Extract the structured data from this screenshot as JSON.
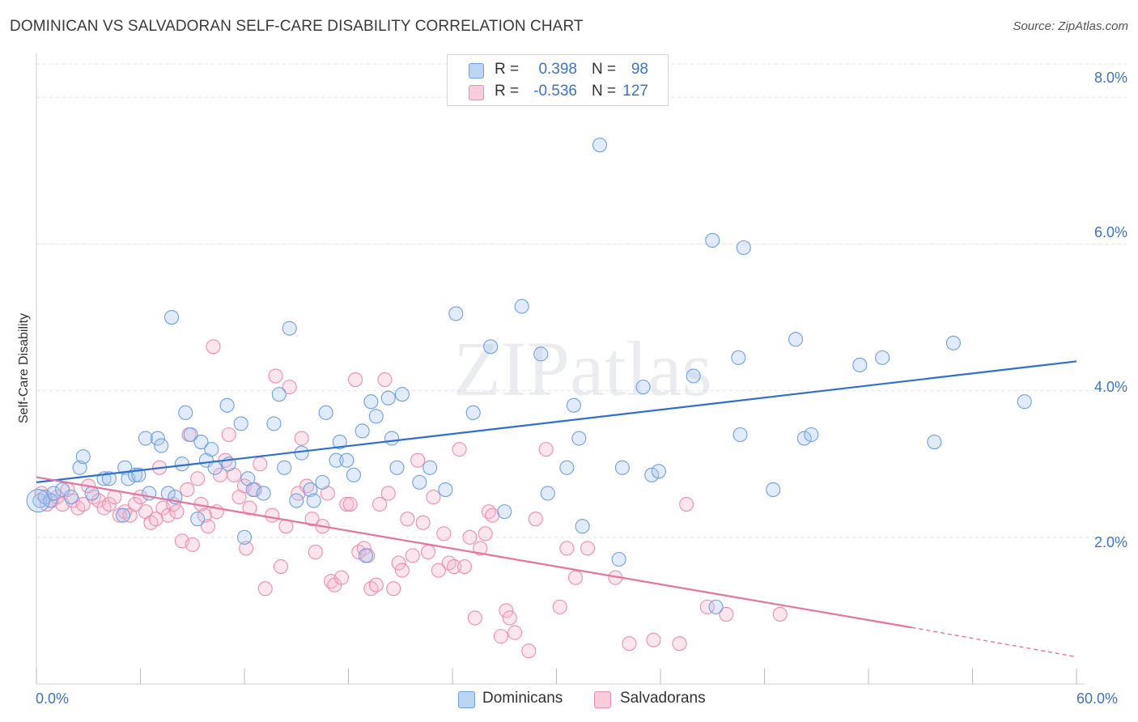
{
  "header": {
    "title": "DOMINICAN VS SALVADORAN SELF-CARE DISABILITY CORRELATION CHART",
    "source": "Source: ZipAtlas.com"
  },
  "watermark": "ZIPatlas",
  "legend": {
    "rows": [
      {
        "label": "R =",
        "r": "0.398",
        "n_label": "N =",
        "n": "98",
        "color": "#a9c7f0"
      },
      {
        "label": "R =",
        "r": "-0.536",
        "n_label": "N =",
        "n": "127",
        "color": "#f5b6cb"
      }
    ]
  },
  "bottom_legend": {
    "items": [
      {
        "label": "Dominicans",
        "color": "#a9c7f0"
      },
      {
        "label": "Salvadorans",
        "color": "#f5b6cb"
      }
    ]
  },
  "chart_data": {
    "type": "scatter",
    "title": "DOMINICAN VS SALVADORAN SELF-CARE DISABILITY CORRELATION CHART",
    "xlabel": "",
    "ylabel": "Self-Care Disability",
    "xlim": [
      0,
      60
    ],
    "ylim": [
      0,
      8.5
    ],
    "x_tick_labels": [
      "0.0%",
      "60.0%"
    ],
    "y_tick_labels": [
      "2.0%",
      "4.0%",
      "6.0%",
      "8.0%"
    ],
    "y_ticks": [
      2,
      4,
      6,
      8
    ],
    "grid": "horizontal dashed",
    "legend_position": "top-center",
    "series": [
      {
        "name": "Dominicans",
        "color": "#6fa0e0",
        "trend": {
          "x": [
            0,
            60
          ],
          "y": [
            2.75,
            4.4
          ]
        },
        "points": [
          [
            0.2,
            2.5
          ],
          [
            0.5,
            2.55
          ],
          [
            0.8,
            2.5
          ],
          [
            1.0,
            2.6
          ],
          [
            1.5,
            2.65
          ],
          [
            2.0,
            2.55
          ],
          [
            2.5,
            2.95
          ],
          [
            2.7,
            3.1
          ],
          [
            3.2,
            2.6
          ],
          [
            3.9,
            2.8
          ],
          [
            4.2,
            2.8
          ],
          [
            5.0,
            2.3
          ],
          [
            5.1,
            2.95
          ],
          [
            5.3,
            2.8
          ],
          [
            5.7,
            2.85
          ],
          [
            5.9,
            2.85
          ],
          [
            6.3,
            3.35
          ],
          [
            6.5,
            2.6
          ],
          [
            7.0,
            3.35
          ],
          [
            7.2,
            3.25
          ],
          [
            7.6,
            2.6
          ],
          [
            7.8,
            5.0
          ],
          [
            8.0,
            2.55
          ],
          [
            8.4,
            3.0
          ],
          [
            8.6,
            3.7
          ],
          [
            8.9,
            3.4
          ],
          [
            9.3,
            2.25
          ],
          [
            9.5,
            3.3
          ],
          [
            9.8,
            3.05
          ],
          [
            10.1,
            3.2
          ],
          [
            10.3,
            2.95
          ],
          [
            11.0,
            3.8
          ],
          [
            11.1,
            3.0
          ],
          [
            11.8,
            3.55
          ],
          [
            12.0,
            2.0
          ],
          [
            12.2,
            2.8
          ],
          [
            12.5,
            2.65
          ],
          [
            13.1,
            2.6
          ],
          [
            13.7,
            3.55
          ],
          [
            14.0,
            3.95
          ],
          [
            14.3,
            2.95
          ],
          [
            14.6,
            4.85
          ],
          [
            15.0,
            2.5
          ],
          [
            15.3,
            3.15
          ],
          [
            15.8,
            2.65
          ],
          [
            16.0,
            2.5
          ],
          [
            16.5,
            2.75
          ],
          [
            16.7,
            3.7
          ],
          [
            17.3,
            3.05
          ],
          [
            17.5,
            3.3
          ],
          [
            17.9,
            3.05
          ],
          [
            18.3,
            2.85
          ],
          [
            18.8,
            3.45
          ],
          [
            19.0,
            1.75
          ],
          [
            19.3,
            3.85
          ],
          [
            19.6,
            3.65
          ],
          [
            20.3,
            3.9
          ],
          [
            20.5,
            3.35
          ],
          [
            20.8,
            2.95
          ],
          [
            21.1,
            3.95
          ],
          [
            22.1,
            2.75
          ],
          [
            22.7,
            2.95
          ],
          [
            23.6,
            2.65
          ],
          [
            24.2,
            5.05
          ],
          [
            25.2,
            3.7
          ],
          [
            26.2,
            4.6
          ],
          [
            27.0,
            2.35
          ],
          [
            28.0,
            5.15
          ],
          [
            29.1,
            4.5
          ],
          [
            29.5,
            2.6
          ],
          [
            30.6,
            2.95
          ],
          [
            31.0,
            3.8
          ],
          [
            31.3,
            3.35
          ],
          [
            31.5,
            2.15
          ],
          [
            32.5,
            7.35
          ],
          [
            33.6,
            1.7
          ],
          [
            33.8,
            2.95
          ],
          [
            35.0,
            4.05
          ],
          [
            35.5,
            2.85
          ],
          [
            35.9,
            2.9
          ],
          [
            37.9,
            4.2
          ],
          [
            39.0,
            6.05
          ],
          [
            39.2,
            1.05
          ],
          [
            40.5,
            4.45
          ],
          [
            40.6,
            3.4
          ],
          [
            40.8,
            5.95
          ],
          [
            42.5,
            2.65
          ],
          [
            43.8,
            4.7
          ],
          [
            44.3,
            3.35
          ],
          [
            44.7,
            3.4
          ],
          [
            47.5,
            4.35
          ],
          [
            48.8,
            4.45
          ],
          [
            51.8,
            3.3
          ],
          [
            52.9,
            4.65
          ],
          [
            57.0,
            3.85
          ]
        ]
      },
      {
        "name": "Salvadorans",
        "color": "#f08cae",
        "trend": {
          "x": [
            0,
            50.5
          ],
          "y": [
            2.82,
            0.77
          ],
          "dashed_to": [
            60,
            0.37
          ]
        },
        "points": [
          [
            0.3,
            2.6
          ],
          [
            0.6,
            2.45
          ],
          [
            0.9,
            2.5
          ],
          [
            1.2,
            2.55
          ],
          [
            1.5,
            2.45
          ],
          [
            1.8,
            2.65
          ],
          [
            2.1,
            2.5
          ],
          [
            2.4,
            2.4
          ],
          [
            2.7,
            2.45
          ],
          [
            3.0,
            2.7
          ],
          [
            3.3,
            2.55
          ],
          [
            3.6,
            2.5
          ],
          [
            3.9,
            2.4
          ],
          [
            4.2,
            2.45
          ],
          [
            4.5,
            2.55
          ],
          [
            4.8,
            2.3
          ],
          [
            5.1,
            2.35
          ],
          [
            5.4,
            2.3
          ],
          [
            5.7,
            2.45
          ],
          [
            6.0,
            2.55
          ],
          [
            6.3,
            2.35
          ],
          [
            6.6,
            2.2
          ],
          [
            6.9,
            2.25
          ],
          [
            7.1,
            2.95
          ],
          [
            7.3,
            2.4
          ],
          [
            7.6,
            2.3
          ],
          [
            7.9,
            2.45
          ],
          [
            8.1,
            2.35
          ],
          [
            8.4,
            1.95
          ],
          [
            8.7,
            2.65
          ],
          [
            8.8,
            3.4
          ],
          [
            9.0,
            1.9
          ],
          [
            9.3,
            2.8
          ],
          [
            9.5,
            2.45
          ],
          [
            9.7,
            2.3
          ],
          [
            9.9,
            2.15
          ],
          [
            10.2,
            4.6
          ],
          [
            10.4,
            2.35
          ],
          [
            10.6,
            2.85
          ],
          [
            10.9,
            3.05
          ],
          [
            11.1,
            3.4
          ],
          [
            11.4,
            2.85
          ],
          [
            11.7,
            2.55
          ],
          [
            12.0,
            2.7
          ],
          [
            12.1,
            1.85
          ],
          [
            12.3,
            2.4
          ],
          [
            12.6,
            2.65
          ],
          [
            12.9,
            3.0
          ],
          [
            13.2,
            1.3
          ],
          [
            13.6,
            2.3
          ],
          [
            13.8,
            4.2
          ],
          [
            14.1,
            1.6
          ],
          [
            14.4,
            2.15
          ],
          [
            14.6,
            4.05
          ],
          [
            15.1,
            2.6
          ],
          [
            15.3,
            3.35
          ],
          [
            15.6,
            2.7
          ],
          [
            15.9,
            2.25
          ],
          [
            16.1,
            1.8
          ],
          [
            16.5,
            2.15
          ],
          [
            16.8,
            2.6
          ],
          [
            17.0,
            1.4
          ],
          [
            17.2,
            1.35
          ],
          [
            17.6,
            1.45
          ],
          [
            17.9,
            2.45
          ],
          [
            18.1,
            2.45
          ],
          [
            18.4,
            4.15
          ],
          [
            18.6,
            1.8
          ],
          [
            18.9,
            1.85
          ],
          [
            19.1,
            1.75
          ],
          [
            19.3,
            1.3
          ],
          [
            19.6,
            1.35
          ],
          [
            19.8,
            2.45
          ],
          [
            20.1,
            4.15
          ],
          [
            20.3,
            2.6
          ],
          [
            20.6,
            1.3
          ],
          [
            20.9,
            1.65
          ],
          [
            21.1,
            1.55
          ],
          [
            21.4,
            2.25
          ],
          [
            21.7,
            1.75
          ],
          [
            22.0,
            3.05
          ],
          [
            22.3,
            2.2
          ],
          [
            22.6,
            1.8
          ],
          [
            22.9,
            2.55
          ],
          [
            23.2,
            1.55
          ],
          [
            23.5,
            2.05
          ],
          [
            23.8,
            1.65
          ],
          [
            24.1,
            1.6
          ],
          [
            24.4,
            3.2
          ],
          [
            24.7,
            1.6
          ],
          [
            25.0,
            2.0
          ],
          [
            25.3,
            0.9
          ],
          [
            25.6,
            1.85
          ],
          [
            25.9,
            2.05
          ],
          [
            26.1,
            2.35
          ],
          [
            26.3,
            2.3
          ],
          [
            26.8,
            0.65
          ],
          [
            27.1,
            1.0
          ],
          [
            27.3,
            0.9
          ],
          [
            27.6,
            0.7
          ],
          [
            28.4,
            0.45
          ],
          [
            28.8,
            2.25
          ],
          [
            29.4,
            3.2
          ],
          [
            30.2,
            1.05
          ],
          [
            30.6,
            1.85
          ],
          [
            31.1,
            1.45
          ],
          [
            31.8,
            1.85
          ],
          [
            33.4,
            1.45
          ],
          [
            34.2,
            0.55
          ],
          [
            35.6,
            0.6
          ],
          [
            37.1,
            0.55
          ],
          [
            37.5,
            2.45
          ],
          [
            38.7,
            1.05
          ],
          [
            39.8,
            0.95
          ],
          [
            42.9,
            0.95
          ]
        ]
      }
    ]
  }
}
